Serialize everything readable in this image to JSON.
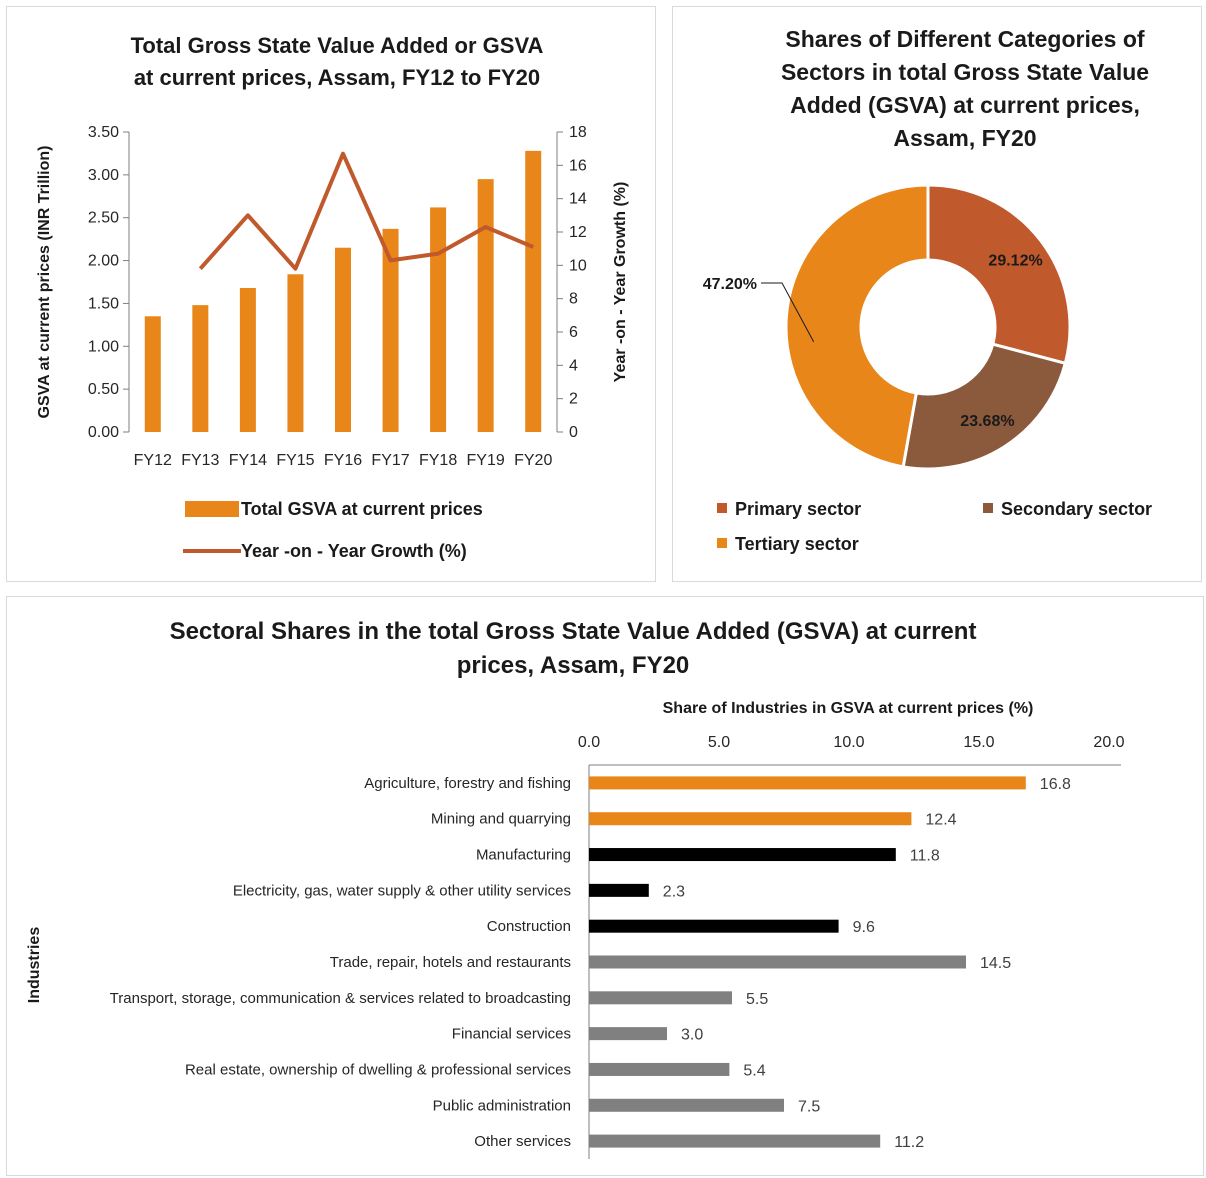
{
  "chart_data": [
    {
      "type": "bar",
      "title": "Total Gross State Value Added or GSVA at current prices, Assam, FY12 to FY20",
      "title_lines": [
        "Total Gross State Value Added or GSVA",
        "at current prices, Assam, FY12 to FY20"
      ],
      "categories": [
        "FY12",
        "FY13",
        "FY14",
        "FY15",
        "FY16",
        "FY17",
        "FY18",
        "FY19",
        "FY20"
      ],
      "series": [
        {
          "name": "Total GSVA at current prices",
          "type": "bar",
          "axis": "left",
          "color": "#E8861A",
          "values": [
            1.35,
            1.48,
            1.68,
            1.84,
            2.15,
            2.37,
            2.62,
            2.95,
            3.28
          ]
        },
        {
          "name": "Year -on - Year Growth (%)",
          "type": "line",
          "axis": "right",
          "color": "#C0592B",
          "values": [
            null,
            9.8,
            13.0,
            9.8,
            16.7,
            10.3,
            10.7,
            12.3,
            11.1
          ]
        }
      ],
      "ylabel": "GSVA at current prices (INR Trillion)",
      "y2label": "Year -on - Year Growth (%)",
      "ylim": [
        0,
        3.5
      ],
      "yticks": [
        "0.00",
        "0.50",
        "1.00",
        "1.50",
        "2.00",
        "2.50",
        "3.00",
        "3.50"
      ],
      "y2lim": [
        0,
        18
      ],
      "y2ticks": [
        "0",
        "2",
        "4",
        "6",
        "8",
        "10",
        "12",
        "14",
        "16",
        "18"
      ],
      "legend_position": "bottom",
      "grid": false
    },
    {
      "type": "pie",
      "donut": true,
      "title": "Shares of Different Categories of Sectors in total Gross State Value Added (GSVA) at current prices, Assam, FY20",
      "title_lines": [
        "Shares of Different Categories of",
        "Sectors in total Gross State Value",
        "Added (GSVA) at current prices,",
        "Assam, FY20"
      ],
      "slices": [
        {
          "name": "Primary sector",
          "value": 29.12,
          "label": "29.12%",
          "color": "#C0592B"
        },
        {
          "name": "Secondary sector",
          "value": 23.68,
          "label": "23.68%",
          "color": "#8B5A3C"
        },
        {
          "name": "Tertiary sector",
          "value": 47.2,
          "label": "47.20%",
          "color": "#E8861A"
        }
      ],
      "legend_position": "bottom"
    },
    {
      "type": "bar",
      "orientation": "horizontal",
      "title": "Sectoral Shares in the total  Gross State Value Added (GSVA) at current prices, Assam, FY20",
      "title_lines": [
        "Sectoral Shares in the total  Gross State Value Added (GSVA) at current",
        "prices, Assam, FY20"
      ],
      "xlabel": "Share of Industries in GSVA at current prices (%)",
      "ylabel": "Industries",
      "xlim": [
        0,
        20
      ],
      "xticks": [
        "0.0",
        "5.0",
        "10.0",
        "15.0",
        "20.0"
      ],
      "categories": [
        "Agriculture, forestry and fishing",
        "Mining and quarrying",
        "Manufacturing",
        "Electricity, gas, water supply & other utility services",
        "Construction",
        "Trade, repair, hotels and restaurants",
        "Transport, storage, communication & services related to broadcasting",
        "Financial services",
        "Real estate, ownership of dwelling & professional services",
        "Public administration",
        "Other services"
      ],
      "values": [
        16.8,
        12.4,
        11.8,
        2.3,
        9.6,
        14.5,
        5.5,
        3.0,
        5.4,
        7.5,
        11.2
      ],
      "labels": [
        "16.8",
        "12.4",
        "11.8",
        "2.3",
        "9.6",
        "14.5",
        "5.5",
        "3.0",
        "5.4",
        "7.5",
        "11.2"
      ],
      "colors": [
        "#E8861A",
        "#E8861A",
        "#000000",
        "#000000",
        "#000000",
        "#808080",
        "#808080",
        "#808080",
        "#808080",
        "#808080",
        "#808080"
      ],
      "axis_position": "top",
      "grid": false
    }
  ]
}
